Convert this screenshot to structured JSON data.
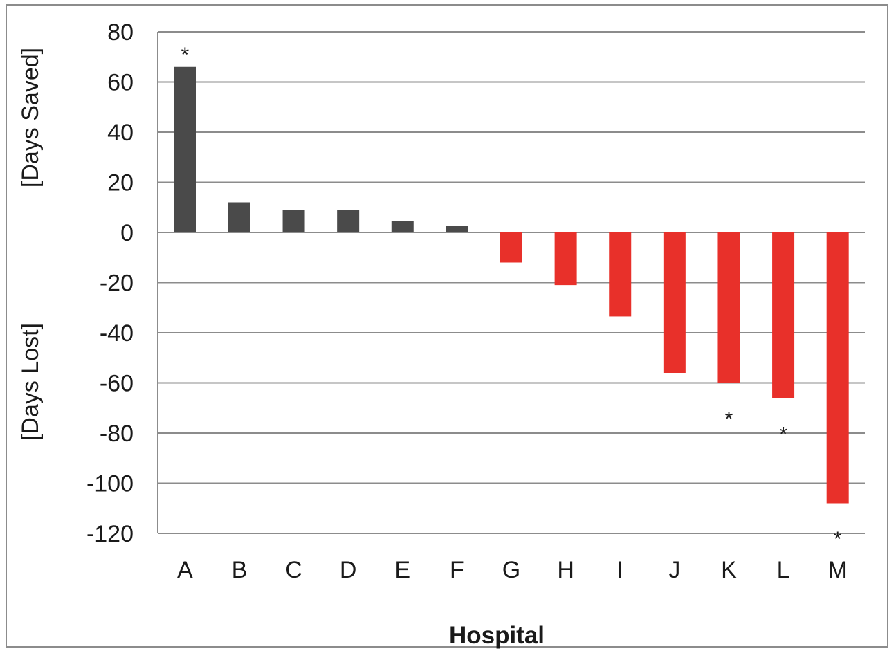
{
  "chart_data": {
    "type": "bar",
    "categories": [
      "A",
      "B",
      "C",
      "D",
      "E",
      "F",
      "G",
      "H",
      "I",
      "J",
      "K",
      "L",
      "M"
    ],
    "values": [
      66,
      12,
      9,
      9,
      4.5,
      2.5,
      -12,
      -21,
      -33.5,
      -56,
      -60,
      -66,
      -108
    ],
    "xlabel": "Hospital",
    "ylabel_positive": "[Days Saved]",
    "ylabel_negative": "[Days Lost]",
    "ylim": [
      -120,
      80
    ],
    "yticks": [
      80,
      60,
      40,
      20,
      0,
      -20,
      -40,
      -60,
      -80,
      -100,
      -120
    ],
    "ytick_labels": [
      "80",
      "60",
      "40",
      "20",
      "0",
      "-20",
      "-40",
      "-60",
      "-80",
      "-100",
      "-120"
    ],
    "significance_marker": "*",
    "significant": [
      true,
      false,
      false,
      false,
      false,
      false,
      false,
      false,
      false,
      false,
      true,
      true,
      true
    ],
    "grid": true,
    "colors": {
      "positive": "#4a4a4a",
      "negative": "#e8302a",
      "grid": "#8c8c8c"
    }
  }
}
